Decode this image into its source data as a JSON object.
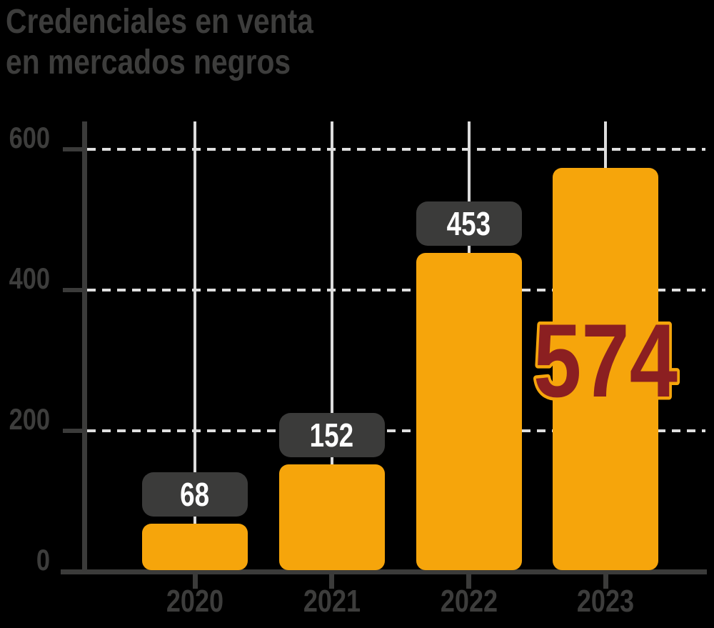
{
  "title": {
    "line1": "Credenciales en venta",
    "line2": "en mercados negros"
  },
  "chart_data": {
    "type": "bar",
    "title": "Credenciales en venta en mercados negros",
    "categories": [
      "2020",
      "2021",
      "2022",
      "2023"
    ],
    "values": [
      68,
      152,
      453,
      574
    ],
    "value_label_styles": [
      "badge",
      "badge",
      "badge",
      "big-outline"
    ],
    "xlabel": "",
    "ylabel": "",
    "ylim": [
      0,
      600
    ],
    "yticks": [
      0,
      200,
      400,
      600
    ],
    "grid": "dashed-horizontal",
    "bar_guide_lines": true,
    "legend": "none",
    "highlight_index": 3,
    "highlight_value": "574"
  },
  "colors": {
    "background": "#000000",
    "title_text": "#3D3D3C",
    "bar": "#F6A50B",
    "badge": "#3B3B3A",
    "badge_text": "#FFFFFF",
    "axis": "#3B3B3A",
    "tick_label": "#3D3D3C",
    "gridline": "#DEDEDE",
    "bar_guide_line": "#DCDCDC",
    "highlight_number": "#8B1F21",
    "highlight_outline": "#F6A50B"
  }
}
